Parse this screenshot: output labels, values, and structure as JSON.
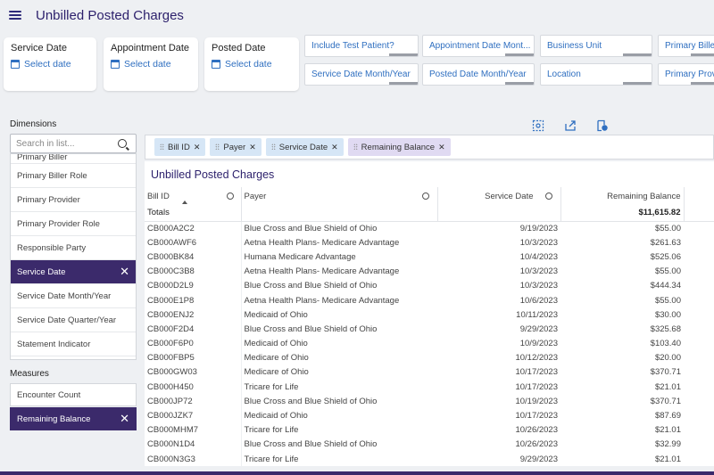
{
  "header": {
    "title": "Unbilled Posted Charges"
  },
  "date_filters": [
    {
      "label": "Service Date",
      "value": "Select date"
    },
    {
      "label": "Appointment Date",
      "value": "Select date"
    },
    {
      "label": "Posted Date",
      "value": "Select date"
    }
  ],
  "filter_chips": [
    "Include Test Patient?",
    "Appointment Date Mont...",
    "Business Unit",
    "Primary Biller",
    "Service Date Month/Year",
    "Posted Date Month/Year",
    "Location",
    "Primary Provi"
  ],
  "dimensions": {
    "label": "Dimensions",
    "search_placeholder": "Search in list...",
    "items": [
      "Primary Biller",
      "Primary Biller Role",
      "Primary Provider",
      "Primary Provider Role",
      "Responsible Party",
      "Service Date",
      "Service Date Month/Year",
      "Service Date Quarter/Year",
      "Statement Indicator"
    ],
    "selected": "Service Date"
  },
  "measures": {
    "label": "Measures",
    "items": [
      "Encounter Count",
      "Remaining Balance"
    ],
    "selected": "Remaining Balance"
  },
  "column_chips": [
    {
      "label": "Bill ID",
      "kind": "dimension"
    },
    {
      "label": "Payer",
      "kind": "dimension"
    },
    {
      "label": "Service Date",
      "kind": "dimension"
    },
    {
      "label": "Remaining Balance",
      "kind": "measure"
    }
  ],
  "report": {
    "title": "Unbilled Posted Charges",
    "columns": [
      "Bill ID",
      "Payer",
      "Service Date",
      "Remaining Balance"
    ],
    "totals_label": "Totals",
    "totals_value": "$11,615.82",
    "rows": [
      [
        "CB000A2C2",
        "Blue Cross and Blue Shield of Ohio",
        "9/19/2023",
        "$55.00"
      ],
      [
        "CB000AWF6",
        "Aetna Health Plans- Medicare Advantage",
        "10/3/2023",
        "$261.63"
      ],
      [
        "CB000BK84",
        "Humana Medicare Advantage",
        "10/4/2023",
        "$525.06"
      ],
      [
        "CB000C3B8",
        "Aetna Health Plans- Medicare Advantage",
        "10/3/2023",
        "$55.00"
      ],
      [
        "CB000D2L9",
        "Blue Cross and Blue Shield of Ohio",
        "10/3/2023",
        "$444.34"
      ],
      [
        "CB000E1P8",
        "Aetna Health Plans- Medicare Advantage",
        "10/6/2023",
        "$55.00"
      ],
      [
        "CB000ENJ2",
        "Medicaid of Ohio",
        "10/11/2023",
        "$30.00"
      ],
      [
        "CB000F2D4",
        "Blue Cross and Blue Shield of Ohio",
        "9/29/2023",
        "$325.68"
      ],
      [
        "CB000F6P0",
        "Medicaid of Ohio",
        "10/9/2023",
        "$103.40"
      ],
      [
        "CB000FBP5",
        "Medicare of Ohio",
        "10/12/2023",
        "$20.00"
      ],
      [
        "CB000GW03",
        "Medicare of Ohio",
        "10/17/2023",
        "$370.71"
      ],
      [
        "CB000H450",
        "Tricare for Life",
        "10/17/2023",
        "$21.01"
      ],
      [
        "CB000JP72",
        "Blue Cross and Blue Shield of Ohio",
        "10/19/2023",
        "$370.71"
      ],
      [
        "CB000JZK7",
        "Medicaid of Ohio",
        "10/17/2023",
        "$87.69"
      ],
      [
        "CB000MHM7",
        "Tricare for Life",
        "10/26/2023",
        "$21.01"
      ],
      [
        "CB000N1D4",
        "Blue Cross and Blue Shield of Ohio",
        "10/26/2023",
        "$32.99"
      ],
      [
        "CB000N3G3",
        "Tricare for Life",
        "9/29/2023",
        "$21.01"
      ]
    ]
  },
  "colors": {
    "accent": "#3b2a6b",
    "link": "#2f6fc0"
  }
}
